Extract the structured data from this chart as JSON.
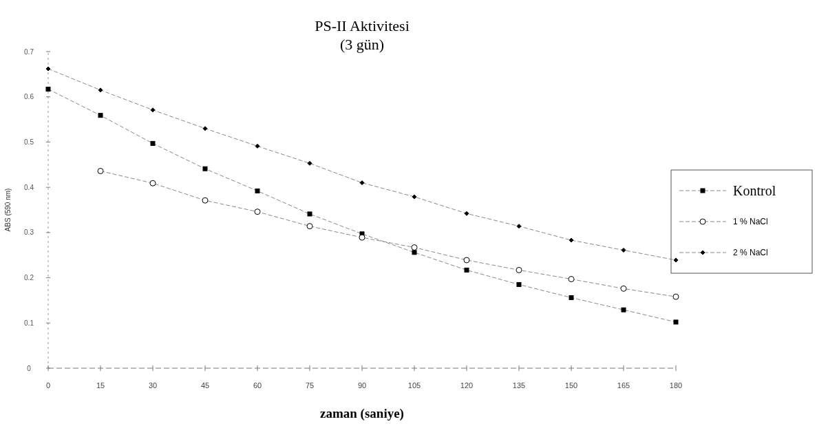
{
  "chart_data": {
    "type": "line",
    "title": "PS-II Aktivitesi",
    "subtitle": "(3 gün)",
    "xlabel": "zaman (saniye)",
    "ylabel": "ABS (590 nm)",
    "x": [
      0,
      15,
      30,
      45,
      60,
      75,
      90,
      105,
      120,
      135,
      150,
      165,
      180
    ],
    "xlim": [
      0,
      180
    ],
    "xticks": [
      0,
      15,
      30,
      45,
      60,
      75,
      90,
      105,
      120,
      135,
      150,
      165,
      180
    ],
    "ylim": [
      0,
      0.7
    ],
    "yticks": [
      0,
      0.1,
      0.2,
      0.3,
      0.4,
      0.5,
      0.6,
      0.7
    ],
    "grid": false,
    "legend": "right",
    "line_style": "dashed",
    "series": [
      {
        "name": "Kontrol",
        "color": "#000000",
        "marker": "square",
        "values": [
          0.617,
          0.559,
          0.497,
          0.441,
          0.392,
          0.341,
          0.297,
          0.256,
          0.217,
          0.185,
          0.156,
          0.129,
          0.102
        ]
      },
      {
        "name": "1 % NaCl",
        "color": "#000000",
        "marker": "circle",
        "values": [
          null,
          0.436,
          0.409,
          0.371,
          0.346,
          0.314,
          0.289,
          0.267,
          0.239,
          0.217,
          0.197,
          0.176,
          0.158
        ]
      },
      {
        "name": "2 % NaCl",
        "color": "#000000",
        "marker": "diamond",
        "values": [
          0.662,
          0.615,
          0.571,
          0.53,
          0.491,
          0.453,
          0.41,
          0.379,
          0.342,
          0.314,
          0.283,
          0.261,
          0.239
        ]
      }
    ]
  }
}
